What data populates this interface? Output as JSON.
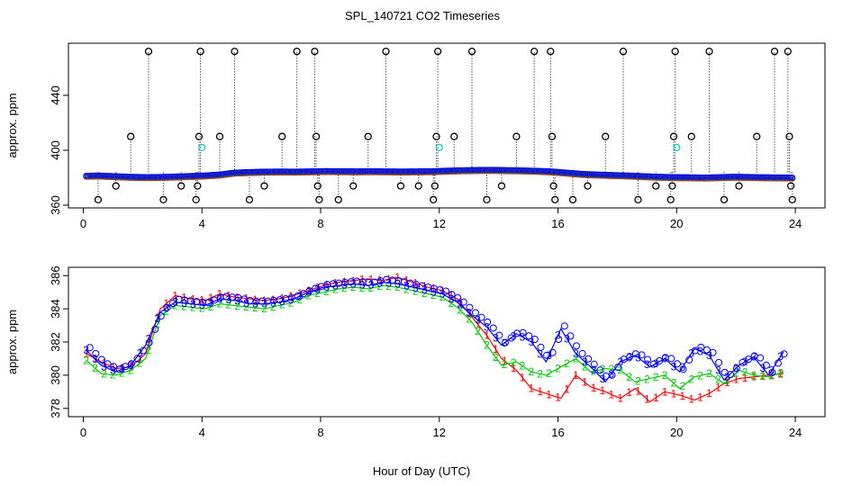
{
  "figure": {
    "title": "SPL_140721  CO2 Timeseries",
    "xlabel": "Hour of Day (UTC)"
  },
  "chart_data": [
    {
      "type": "scatter",
      "name": "top-panel",
      "ylabel": "approx. ppm",
      "xlim": [
        -0.5,
        25
      ],
      "ylim": [
        358,
        478
      ],
      "xticks": [
        0,
        4,
        8,
        12,
        16,
        20,
        24
      ],
      "xtick_labels": [
        "0",
        "4",
        "8",
        "12",
        "16",
        "20",
        "24"
      ],
      "yticks": [
        360,
        400,
        440
      ],
      "ytick_labels": [
        "360",
        "400",
        "440"
      ],
      "main_series_x_start": 0.1,
      "main_series_step": 0.05,
      "main_series_values": [
        381.2,
        381.5,
        381.0,
        380.6,
        380.3,
        380.4,
        380.7,
        381.1,
        381.5,
        382.2,
        383.6,
        384.0,
        384.3,
        384.4,
        384.3,
        384.5,
        384.7,
        384.6,
        384.5,
        384.6,
        384.5,
        384.4,
        384.5,
        384.6,
        385.0,
        385.3,
        385.5,
        385.6,
        385.4,
        385.2,
        384.9,
        384.4,
        383.5,
        382.6,
        382.2,
        381.8,
        381.5,
        381.0,
        380.6,
        380.3,
        380.2,
        380.0,
        380.3,
        380.6,
        380.4,
        380.2,
        380.1,
        380.0
      ],
      "cyan_points": [
        [
          4.0,
          402
        ],
        [
          12.0,
          402
        ],
        [
          20.0,
          402
        ]
      ],
      "black_points": [
        [
          0.5,
          364
        ],
        [
          1.1,
          374
        ],
        [
          1.6,
          410
        ],
        [
          2.2,
          472
        ],
        [
          2.7,
          364
        ],
        [
          3.3,
          374
        ],
        [
          3.8,
          364
        ],
        [
          3.85,
          374
        ],
        [
          3.9,
          410
        ],
        [
          3.95,
          472
        ],
        [
          4.6,
          410
        ],
        [
          5.1,
          472
        ],
        [
          5.6,
          364
        ],
        [
          6.1,
          374
        ],
        [
          6.7,
          410
        ],
        [
          7.2,
          472
        ],
        [
          7.8,
          472
        ],
        [
          7.85,
          410
        ],
        [
          7.9,
          374
        ],
        [
          7.95,
          364
        ],
        [
          8.6,
          364
        ],
        [
          9.1,
          374
        ],
        [
          9.6,
          410
        ],
        [
          10.2,
          472
        ],
        [
          10.7,
          374
        ],
        [
          11.3,
          374
        ],
        [
          11.8,
          364
        ],
        [
          11.85,
          374
        ],
        [
          11.9,
          410
        ],
        [
          11.95,
          472
        ],
        [
          12.5,
          410
        ],
        [
          13.1,
          472
        ],
        [
          13.6,
          364
        ],
        [
          14.1,
          374
        ],
        [
          14.6,
          410
        ],
        [
          15.2,
          472
        ],
        [
          15.75,
          472
        ],
        [
          15.8,
          410
        ],
        [
          15.85,
          374
        ],
        [
          15.9,
          364
        ],
        [
          16.5,
          364
        ],
        [
          17.0,
          374
        ],
        [
          17.6,
          410
        ],
        [
          18.2,
          472
        ],
        [
          18.7,
          364
        ],
        [
          19.3,
          374
        ],
        [
          19.8,
          364
        ],
        [
          19.85,
          374
        ],
        [
          19.9,
          410
        ],
        [
          19.95,
          472
        ],
        [
          20.5,
          410
        ],
        [
          21.1,
          472
        ],
        [
          21.6,
          364
        ],
        [
          22.1,
          374
        ],
        [
          22.7,
          410
        ],
        [
          23.3,
          472
        ],
        [
          23.75,
          472
        ],
        [
          23.8,
          410
        ],
        [
          23.85,
          374
        ],
        [
          23.9,
          364
        ]
      ],
      "legend": []
    },
    {
      "type": "line",
      "name": "bottom-panel",
      "ylabel": "approx. ppm",
      "xlim": [
        -0.5,
        25
      ],
      "ylim": [
        377.5,
        386.5
      ],
      "xticks": [
        0,
        4,
        8,
        12,
        16,
        20,
        24
      ],
      "xtick_labels": [
        "0",
        "4",
        "8",
        "12",
        "16",
        "20",
        "24"
      ],
      "yticks": [
        378,
        380,
        382,
        384,
        386
      ],
      "ytick_labels": [
        "378",
        "380",
        "382",
        "384",
        "386"
      ],
      "series": [
        {
          "name": "1",
          "color": "#ff0000",
          "marker": "1",
          "x_start": 0.1,
          "step": 0.5,
          "values": [
            381.3,
            380.8,
            380.4,
            380.5,
            381.3,
            384.0,
            384.8,
            384.6,
            384.5,
            384.9,
            384.7,
            384.6,
            384.5,
            384.6,
            384.8,
            385.1,
            385.4,
            385.6,
            385.7,
            385.8,
            385.7,
            385.9,
            385.6,
            385.3,
            385.1,
            384.6,
            383.5,
            382.4,
            381.0,
            380.3,
            379.2,
            378.9,
            378.6,
            380.0,
            379.3,
            379.0,
            378.6,
            379.2,
            378.4,
            379.0,
            378.8,
            378.5,
            378.9,
            379.5,
            379.8,
            379.9,
            380.0,
            380.1
          ],
          "label_values": [
            1.5,
            3.2,
            5.5,
            11.8,
            13.0,
            17.8,
            18.6,
            20.9,
            22.4,
            23.4
          ]
        },
        {
          "name": "2",
          "color": "#00cc00",
          "marker": "2",
          "x_start": 0.1,
          "step": 0.5,
          "values": [
            380.9,
            380.1,
            380.0,
            380.3,
            381.0,
            383.6,
            384.2,
            384.1,
            384.0,
            384.3,
            384.2,
            384.1,
            384.0,
            384.2,
            384.4,
            384.8,
            385.0,
            385.2,
            385.3,
            385.2,
            385.4,
            385.3,
            385.1,
            384.9,
            384.7,
            384.1,
            383.2,
            381.8,
            380.6,
            380.8,
            380.2,
            380.0,
            380.5,
            381.0,
            380.2,
            380.4,
            380.3,
            379.6,
            379.8,
            380.0,
            379.2,
            379.9,
            380.1,
            379.5,
            380.3,
            380.0,
            379.9,
            380.2
          ],
          "label_values": [
            0.7,
            2.0,
            6.1,
            10.4,
            14.6,
            17.0,
            19.4,
            21.7,
            23.0
          ]
        },
        {
          "name": "3",
          "color": "#0000ff",
          "marker": "3",
          "x_start": 0.1,
          "step": 0.5,
          "values": [
            381.5,
            380.6,
            380.2,
            380.6,
            381.8,
            383.8,
            384.4,
            384.3,
            384.2,
            384.6,
            384.5,
            384.3,
            384.3,
            384.4,
            384.6,
            385.0,
            385.3,
            385.4,
            385.5,
            385.4,
            385.6,
            385.5,
            385.3,
            385.1,
            384.9,
            384.4,
            383.6,
            382.9,
            381.8,
            382.5,
            382.0,
            380.8,
            382.8,
            381.3,
            380.5,
            379.6,
            380.8,
            381.2,
            380.5,
            381.0,
            380.2,
            381.6,
            381.2,
            379.7,
            380.6,
            381.1,
            380.0,
            381.4
          ],
          "label_values": [
            0.3,
            3.5,
            5.0,
            9.0,
            12.0,
            15.8,
            16.7,
            18.9,
            21.1,
            22.3,
            23.6
          ]
        }
      ],
      "legend": []
    }
  ]
}
